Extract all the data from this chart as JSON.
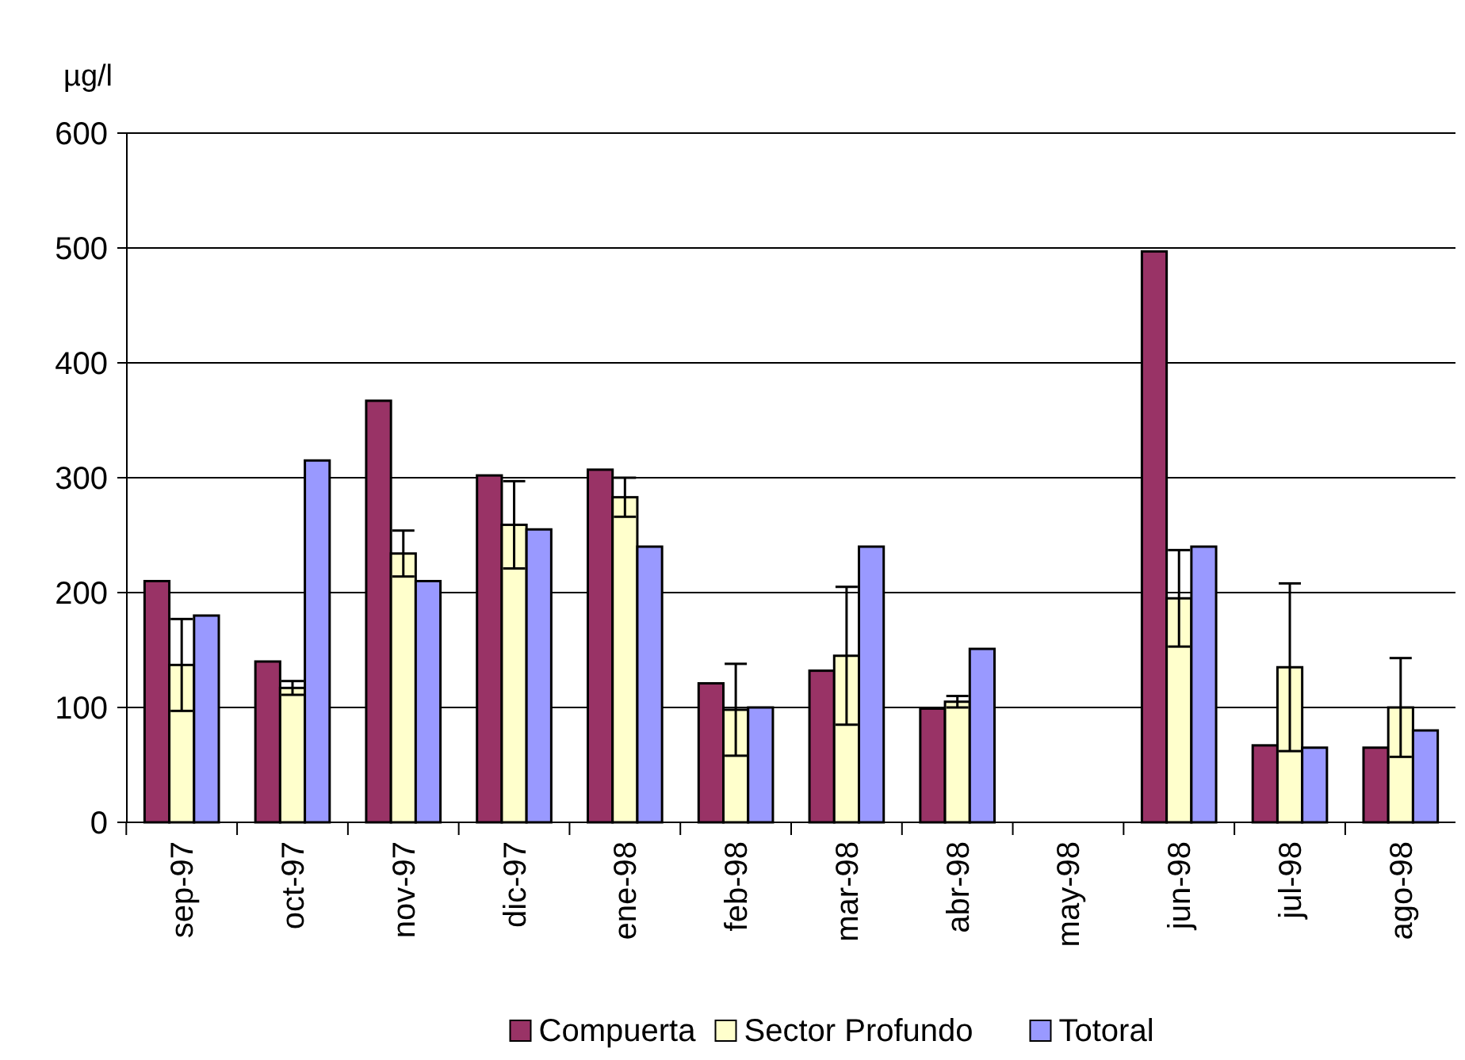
{
  "chart_data": {
    "type": "bar",
    "ylabel": "µg/l",
    "categories": [
      "sep-97",
      "oct-97",
      "nov-97",
      "dic-97",
      "ene-98",
      "feb-98",
      "mar-98",
      "abr-98",
      "may-98",
      "jun-98",
      "jul-98",
      "ago-98"
    ],
    "series": [
      {
        "name": "Compuerta",
        "color": "#993366",
        "values": [
          210,
          140,
          367,
          302,
          307,
          121,
          132,
          99,
          null,
          497,
          67,
          65
        ]
      },
      {
        "name": "Sector Profundo",
        "color": "#ffffcc",
        "values": [
          137,
          117,
          234,
          259,
          283,
          98,
          145,
          105,
          null,
          195,
          135,
          100
        ],
        "errors": [
          40,
          6,
          20,
          38,
          17,
          40,
          60,
          5,
          null,
          42,
          73,
          43
        ]
      },
      {
        "name": "Totoral",
        "color": "#9999ff",
        "values": [
          180,
          315,
          210,
          255,
          240,
          100,
          240,
          151,
          null,
          240,
          65,
          80
        ]
      }
    ],
    "ylim": [
      0,
      600
    ],
    "yticks": [
      0,
      100,
      200,
      300,
      400,
      500,
      600
    ],
    "grid": "y",
    "legend": "bottom"
  }
}
